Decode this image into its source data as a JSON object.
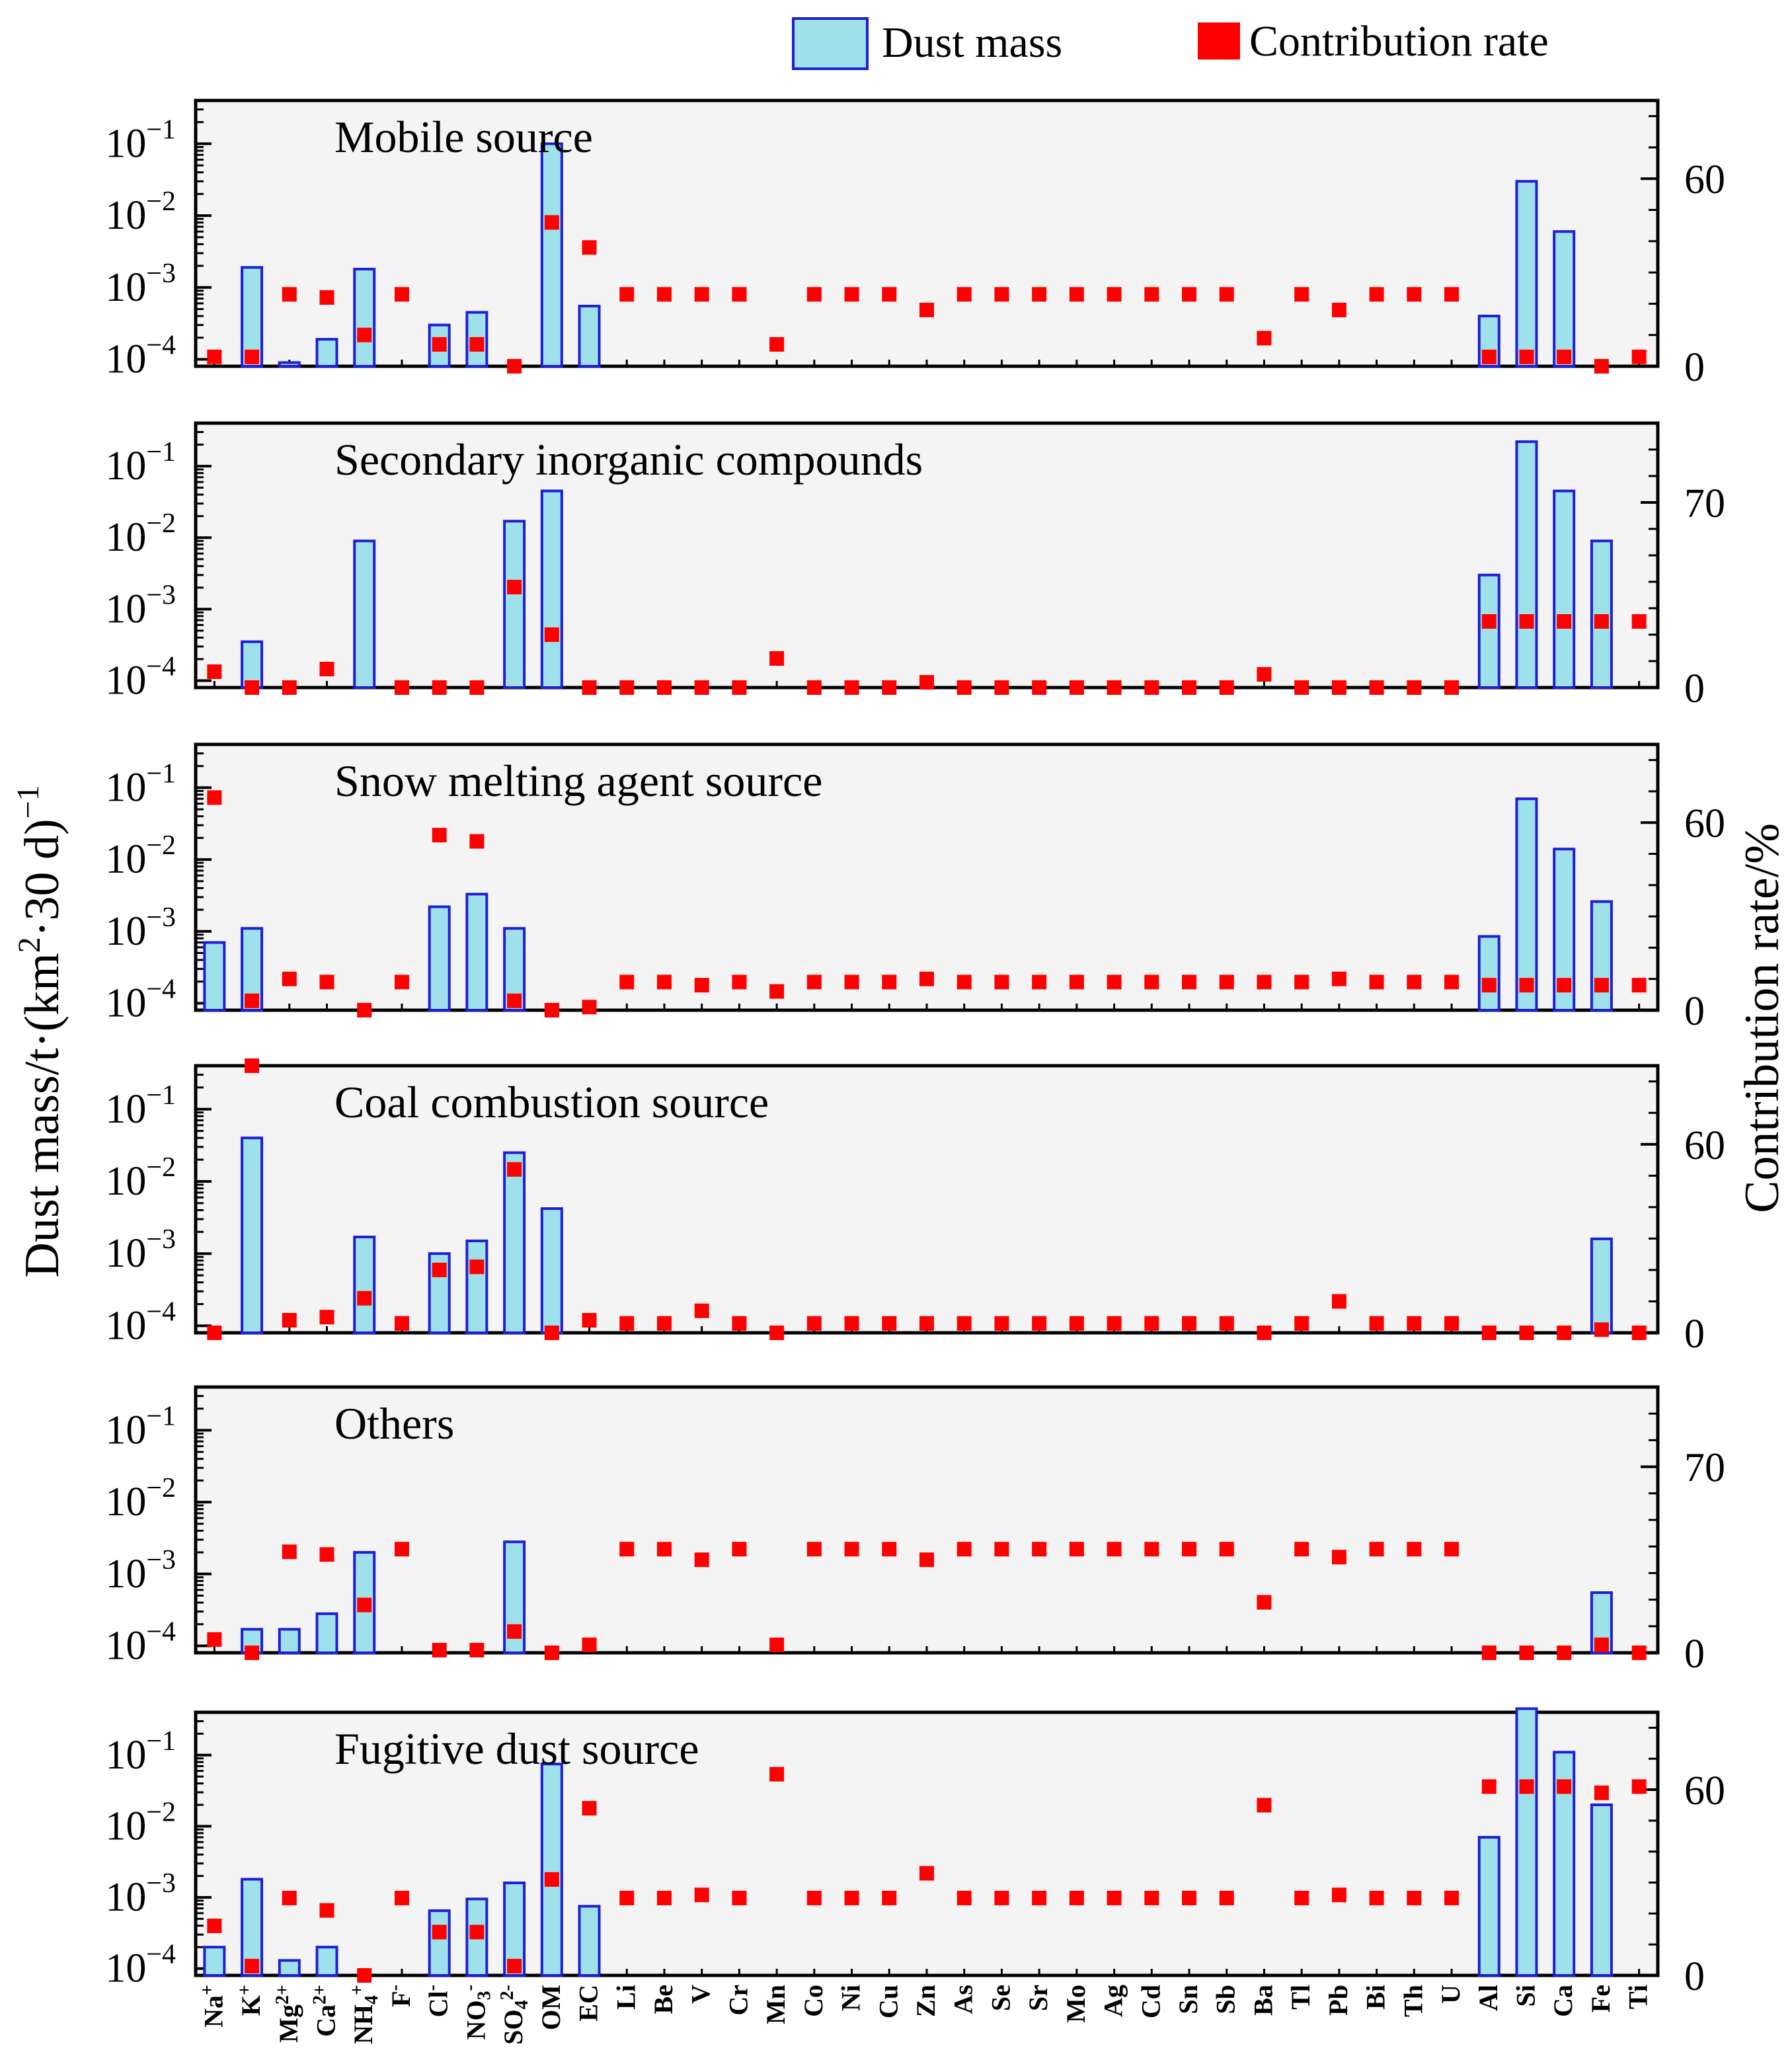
{
  "colors": {
    "bar_fill": "#9fe1ea",
    "bar_stroke": "#1f1fd6",
    "marker": "#ff0000",
    "panel_bg": "#f4f4f4"
  },
  "legend": {
    "bar_label": "Dust mass",
    "marker_label": "Contribution rate"
  },
  "axes": {
    "left_label_main": "Dust mass/t·(km",
    "left_label_exp": "2",
    "left_label_mid": "·30 d)",
    "left_label_exp2": "−1",
    "right_label": "Contribution rate/%",
    "left_ticks": [
      {
        "base": "10",
        "exp": "−1",
        "value": 0.1
      },
      {
        "base": "10",
        "exp": "−2",
        "value": 0.01
      },
      {
        "base": "10",
        "exp": "−3",
        "value": 0.001
      },
      {
        "base": "10",
        "exp": "−4",
        "value": 0.0001
      }
    ]
  },
  "chart_data": {
    "type": "bar",
    "y_scale": "log",
    "y2_scale": "linear",
    "grid": false,
    "legend_position": "top-right",
    "categories": [
      {
        "base": "Na",
        "sub": "",
        "sup": "+"
      },
      {
        "base": "K",
        "sub": "",
        "sup": "+"
      },
      {
        "base": "Mg",
        "sub": "",
        "sup": "2+"
      },
      {
        "base": "Ca",
        "sub": "",
        "sup": "2+"
      },
      {
        "base": "NH",
        "sub": "4",
        "sup": "+"
      },
      {
        "base": "F",
        "sub": "",
        "sup": "-"
      },
      {
        "base": "Cl",
        "sub": "",
        "sup": "-"
      },
      {
        "base": "NO",
        "sub": "3",
        "sup": "-"
      },
      {
        "base": "SO",
        "sub": "4",
        "sup": "2-"
      },
      {
        "base": "OM",
        "sub": "",
        "sup": ""
      },
      {
        "base": "EC",
        "sub": "",
        "sup": ""
      },
      {
        "base": "Li",
        "sub": "",
        "sup": ""
      },
      {
        "base": "Be",
        "sub": "",
        "sup": ""
      },
      {
        "base": "V",
        "sub": "",
        "sup": ""
      },
      {
        "base": "Cr",
        "sub": "",
        "sup": ""
      },
      {
        "base": "Mn",
        "sub": "",
        "sup": ""
      },
      {
        "base": "Co",
        "sub": "",
        "sup": ""
      },
      {
        "base": "Ni",
        "sub": "",
        "sup": ""
      },
      {
        "base": "Cu",
        "sub": "",
        "sup": ""
      },
      {
        "base": "Zn",
        "sub": "",
        "sup": ""
      },
      {
        "base": "As",
        "sub": "",
        "sup": ""
      },
      {
        "base": "Se",
        "sub": "",
        "sup": ""
      },
      {
        "base": "Sr",
        "sub": "",
        "sup": ""
      },
      {
        "base": "Mo",
        "sub": "",
        "sup": ""
      },
      {
        "base": "Ag",
        "sub": "",
        "sup": ""
      },
      {
        "base": "Cd",
        "sub": "",
        "sup": ""
      },
      {
        "base": "Sn",
        "sub": "",
        "sup": ""
      },
      {
        "base": "Sb",
        "sub": "",
        "sup": ""
      },
      {
        "base": "Ba",
        "sub": "",
        "sup": ""
      },
      {
        "base": "Tl",
        "sub": "",
        "sup": ""
      },
      {
        "base": "Pb",
        "sub": "",
        "sup": ""
      },
      {
        "base": "Bi",
        "sub": "",
        "sup": ""
      },
      {
        "base": "Th",
        "sub": "",
        "sup": ""
      },
      {
        "base": "U",
        "sub": "",
        "sup": ""
      },
      {
        "base": "Al",
        "sub": "",
        "sup": ""
      },
      {
        "base": "Si",
        "sub": "",
        "sup": ""
      },
      {
        "base": "Ca",
        "sub": "",
        "sup": ""
      },
      {
        "base": "Fe",
        "sub": "",
        "sup": ""
      },
      {
        "base": "Ti",
        "sub": "",
        "sup": ""
      }
    ],
    "panels": [
      {
        "title": "Mobile source",
        "ylim": [
          8e-05,
          0.4
        ],
        "y2lim": [
          0,
          85
        ],
        "y2_tick": "60",
        "y2_tick_value": 60,
        "y2_zero": "0",
        "dust_mass": [
          null,
          0.0019,
          9e-05,
          0.00019,
          0.0018,
          null,
          0.0003,
          0.00045,
          null,
          0.1,
          0.00055,
          null,
          null,
          null,
          null,
          null,
          null,
          null,
          null,
          null,
          null,
          null,
          null,
          null,
          null,
          null,
          null,
          null,
          null,
          null,
          null,
          null,
          null,
          null,
          0.0004,
          0.03,
          0.006,
          null,
          null
        ],
        "contribution_rate": [
          3,
          3,
          23,
          22,
          10,
          23,
          7,
          7,
          0,
          46,
          38,
          23,
          23,
          23,
          23,
          7,
          23,
          23,
          23,
          18,
          23,
          23,
          23,
          23,
          23,
          23,
          23,
          23,
          9,
          23,
          18,
          23,
          23,
          23,
          3,
          3,
          3,
          0,
          3
        ]
      },
      {
        "title": "Secondary inorganic compounds",
        "ylim": [
          8e-05,
          0.4
        ],
        "y2lim": [
          0,
          100
        ],
        "y2_tick": "70",
        "y2_tick_value": 70,
        "y2_zero": "0",
        "dust_mass": [
          null,
          0.00035,
          null,
          null,
          0.009,
          null,
          null,
          null,
          0.017,
          0.045,
          null,
          null,
          null,
          null,
          null,
          null,
          null,
          null,
          null,
          null,
          null,
          null,
          null,
          null,
          null,
          null,
          null,
          null,
          null,
          null,
          null,
          null,
          null,
          null,
          0.003,
          0.22,
          0.045,
          0.009,
          null
        ],
        "contribution_rate": [
          6,
          -2,
          -1,
          7,
          null,
          -1,
          -3,
          -3,
          38,
          20,
          -3,
          -1,
          -1,
          0,
          -1,
          11,
          -1,
          -1,
          -1,
          2,
          -1,
          -1,
          -1,
          -1,
          -1,
          -1,
          -1,
          -1,
          5,
          -1,
          0,
          -1,
          -1,
          -1,
          25,
          25,
          25,
          25,
          25
        ]
      },
      {
        "title": "Snow melting agent source",
        "ylim": [
          8e-05,
          0.4
        ],
        "y2lim": [
          0,
          85
        ],
        "y2_tick": "60",
        "y2_tick_value": 60,
        "y2_zero": "0",
        "dust_mass": [
          0.0007,
          0.0011,
          null,
          null,
          null,
          null,
          0.0022,
          0.0033,
          0.0011,
          null,
          null,
          null,
          null,
          null,
          null,
          null,
          null,
          null,
          null,
          null,
          null,
          null,
          null,
          null,
          null,
          null,
          null,
          null,
          null,
          null,
          null,
          null,
          null,
          null,
          0.00085,
          0.07,
          0.014,
          0.0026,
          null
        ],
        "contribution_rate": [
          68,
          3,
          10,
          9,
          -1,
          9,
          56,
          54,
          3,
          -1,
          1,
          9,
          9,
          8,
          9,
          6,
          9,
          9,
          9,
          10,
          9,
          9,
          9,
          9,
          9,
          9,
          9,
          9,
          9,
          9,
          10,
          9,
          9,
          9,
          8,
          8,
          8,
          8,
          8
        ]
      },
      {
        "title": "Coal combustion source",
        "ylim": [
          8e-05,
          0.4
        ],
        "y2lim": [
          0,
          85
        ],
        "y2_tick": "60",
        "y2_tick_value": 60,
        "y2_zero": "0",
        "dust_mass": [
          null,
          0.04,
          null,
          null,
          0.0017,
          null,
          0.001,
          0.0015,
          0.025,
          0.0042,
          null,
          null,
          null,
          null,
          null,
          null,
          null,
          null,
          null,
          null,
          null,
          null,
          null,
          null,
          null,
          null,
          null,
          null,
          null,
          null,
          null,
          null,
          null,
          null,
          null,
          null,
          null,
          0.0016,
          null
        ],
        "contribution_rate": [
          -1,
          85,
          4,
          5,
          11,
          3,
          20,
          21,
          52,
          0,
          4,
          3,
          3,
          7,
          3,
          -1,
          3,
          3,
          3,
          3,
          3,
          3,
          3,
          3,
          3,
          3,
          3,
          3,
          0,
          3,
          10,
          3,
          3,
          3,
          -1,
          -1,
          -1,
          1,
          -1
        ]
      },
      {
        "title": "Others",
        "ylim": [
          8e-05,
          0.4
        ],
        "y2lim": [
          0,
          100
        ],
        "y2_tick": "70",
        "y2_tick_value": 70,
        "y2_zero": "0",
        "dust_mass": [
          null,
          0.00017,
          0.00017,
          0.00028,
          0.002,
          null,
          null,
          null,
          0.0028,
          null,
          null,
          null,
          null,
          null,
          null,
          null,
          null,
          null,
          null,
          null,
          null,
          null,
          null,
          null,
          null,
          null,
          null,
          null,
          null,
          null,
          null,
          null,
          null,
          null,
          null,
          null,
          null,
          0.00055,
          null
        ],
        "contribution_rate": [
          5,
          0,
          38,
          37,
          18,
          39,
          1,
          1,
          8,
          -1,
          3,
          39,
          39,
          35,
          39,
          3,
          39,
          39,
          39,
          35,
          39,
          39,
          39,
          39,
          39,
          39,
          39,
          39,
          19,
          39,
          36,
          39,
          39,
          39,
          -1,
          -1,
          -1,
          3,
          -1
        ]
      },
      {
        "title": "Fugitive dust source",
        "ylim": [
          8e-05,
          0.4
        ],
        "y2lim": [
          0,
          85
        ],
        "y2_tick": "60",
        "y2_tick_value": 60,
        "y2_zero": "0",
        "dust_mass": [
          0.0002,
          0.0018,
          0.00013,
          0.0002,
          null,
          null,
          0.00065,
          0.00095,
          0.0016,
          0.075,
          0.00075,
          null,
          null,
          null,
          null,
          null,
          null,
          null,
          null,
          null,
          null,
          null,
          null,
          null,
          null,
          null,
          null,
          null,
          null,
          null,
          null,
          null,
          null,
          null,
          0.007,
          0.45,
          0.11,
          0.02,
          null
        ],
        "contribution_rate": [
          16,
          3,
          25,
          21,
          -1,
          25,
          14,
          14,
          3,
          31,
          54,
          25,
          25,
          26,
          25,
          65,
          25,
          25,
          25,
          33,
          25,
          25,
          25,
          25,
          25,
          25,
          25,
          25,
          55,
          25,
          26,
          25,
          25,
          25,
          61,
          61,
          61,
          59,
          61
        ]
      }
    ]
  }
}
